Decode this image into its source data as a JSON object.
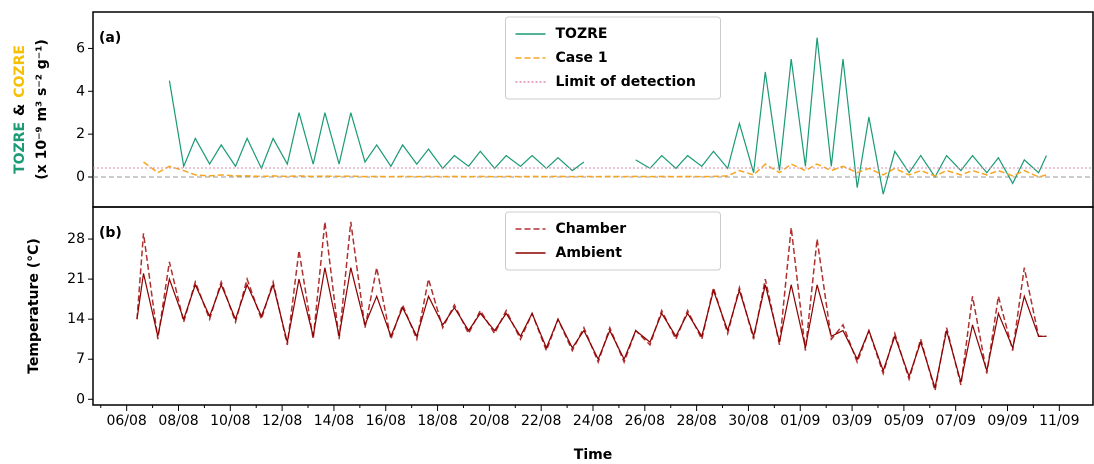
{
  "chart_data": [
    {
      "type": "line",
      "panel_label": "(a)",
      "ylabel": [
        "TOZRE",
        "&",
        "COZRE"
      ],
      "ylabel_colors": [
        "#1a9a75",
        "#000000",
        "#f5c000"
      ],
      "ylabel_units": "(x 10⁻⁹ m³ s⁻² g⁻¹)",
      "xlim": [
        4.7,
        43.3
      ],
      "ylim": [
        -1.4,
        7.7
      ],
      "yticks": [
        0,
        2,
        4,
        6
      ],
      "zero_line": true,
      "legend": "upper center",
      "x": [
        6.4,
        6.65,
        7.2,
        7.65,
        8.2,
        8.65,
        9.2,
        9.65,
        10.2,
        10.65,
        11.2,
        11.65,
        12.2,
        12.65,
        13.2,
        13.65,
        14.2,
        14.65,
        15.2,
        15.65,
        16.2,
        16.65,
        17.2,
        17.65,
        18.2,
        18.65,
        19.2,
        19.65,
        20.2,
        20.65,
        21.2,
        21.65,
        22.2,
        22.65,
        23.2,
        23.65,
        24.2,
        24.65,
        25.2,
        25.65,
        26.2,
        26.65,
        27.2,
        27.65,
        28.2,
        28.65,
        29.2,
        29.65,
        30.2,
        30.65,
        31.2,
        31.65,
        32.2,
        32.65,
        33.2,
        33.65,
        34.2,
        34.65,
        35.2,
        35.65,
        36.2,
        36.65,
        37.2,
        37.65,
        38.2,
        38.65,
        39.2,
        39.65,
        40.2,
        40.65,
        41.2,
        41.5
      ],
      "series": [
        {
          "name": "TOZRE",
          "color": "#1a9a75",
          "style": "solid",
          "values": [
            null,
            null,
            null,
            4.5,
            0.5,
            1.8,
            0.6,
            1.5,
            0.5,
            1.8,
            0.4,
            1.8,
            0.6,
            3.0,
            0.6,
            3.0,
            0.6,
            3.0,
            0.7,
            1.5,
            0.5,
            1.5,
            0.6,
            1.3,
            0.4,
            1.0,
            0.5,
            1.2,
            0.4,
            1.0,
            0.5,
            1.0,
            0.4,
            0.9,
            0.3,
            0.7,
            null,
            0.6,
            null,
            0.8,
            0.4,
            1.0,
            0.4,
            1.0,
            0.5,
            1.2,
            0.4,
            2.5,
            0.2,
            4.9,
            0.3,
            5.5,
            0.5,
            6.5,
            0.5,
            5.5,
            -0.5,
            2.8,
            -0.8,
            1.2,
            0.2,
            1.0,
            0.0,
            1.0,
            0.3,
            1.0,
            0.2,
            0.9,
            -0.3,
            0.8,
            0.2,
            1.0
          ]
        },
        {
          "name": "Case 1",
          "color": "#f5a623",
          "style": "dashed",
          "values": [
            null,
            0.7,
            0.2,
            0.5,
            0.3,
            0.1,
            0.05,
            0.1,
            0.05,
            0.05,
            0.03,
            0.05,
            0.03,
            0.05,
            0.03,
            0.04,
            0.03,
            0.04,
            0.02,
            0.03,
            0.02,
            0.03,
            0.02,
            0.03,
            0.02,
            0.03,
            0.02,
            0.03,
            0.02,
            0.03,
            0.02,
            0.03,
            0.02,
            0.03,
            0.02,
            0.03,
            0.02,
            0.03,
            0.02,
            0.03,
            0.02,
            0.03,
            0.02,
            0.03,
            0.02,
            0.03,
            0.05,
            0.3,
            0.1,
            0.6,
            0.2,
            0.6,
            0.3,
            0.6,
            0.3,
            0.5,
            0.2,
            0.4,
            0.1,
            0.4,
            0.1,
            0.3,
            0.05,
            0.3,
            0.1,
            0.3,
            0.1,
            0.3,
            0.05,
            0.3,
            0.0,
            0.1
          ]
        },
        {
          "name": "Limit of detection",
          "color": "#d98cb0",
          "style": "dotted",
          "value": 0.42
        }
      ]
    },
    {
      "type": "line",
      "panel_label": "(b)",
      "ylabel": "Temperature (°C)",
      "xlabel": "Time",
      "xlim": [
        4.7,
        43.3
      ],
      "ylim": [
        -1,
        33.6
      ],
      "yticks": [
        0,
        7,
        14,
        21,
        28
      ],
      "legend": "upper center",
      "xticks": [
        {
          "value": 6,
          "label": "06/08"
        },
        {
          "value": 8,
          "label": "08/08"
        },
        {
          "value": 10,
          "label": "10/08"
        },
        {
          "value": 12,
          "label": "12/08"
        },
        {
          "value": 14,
          "label": "14/08"
        },
        {
          "value": 16,
          "label": "16/08"
        },
        {
          "value": 18,
          "label": "18/08"
        },
        {
          "value": 20,
          "label": "20/08"
        },
        {
          "value": 22,
          "label": "22/08"
        },
        {
          "value": 24,
          "label": "24/08"
        },
        {
          "value": 26,
          "label": "26/08"
        },
        {
          "value": 28,
          "label": "28/08"
        },
        {
          "value": 30,
          "label": "30/08"
        },
        {
          "value": 32,
          "label": "01/09"
        },
        {
          "value": 34,
          "label": "03/09"
        },
        {
          "value": 36,
          "label": "05/09"
        },
        {
          "value": 38,
          "label": "07/09"
        },
        {
          "value": 40,
          "label": "09/09"
        },
        {
          "value": 42,
          "label": "11/09"
        }
      ],
      "xminorticks": [
        5,
        7,
        9,
        11,
        13,
        15,
        17,
        19,
        21,
        23,
        25,
        27,
        29,
        31,
        33,
        35,
        37,
        39,
        41
      ],
      "x": [
        6.4,
        6.65,
        7.2,
        7.65,
        8.2,
        8.65,
        9.2,
        9.65,
        10.2,
        10.65,
        11.2,
        11.65,
        12.2,
        12.65,
        13.2,
        13.65,
        14.2,
        14.65,
        15.2,
        15.65,
        16.2,
        16.65,
        17.2,
        17.65,
        18.2,
        18.65,
        19.2,
        19.65,
        20.2,
        20.65,
        21.2,
        21.65,
        22.2,
        22.65,
        23.2,
        23.65,
        24.2,
        24.65,
        25.2,
        25.65,
        26.2,
        26.65,
        27.2,
        27.65,
        28.2,
        28.65,
        29.2,
        29.65,
        30.2,
        30.65,
        31.2,
        31.65,
        32.2,
        32.65,
        33.2,
        33.65,
        34.2,
        34.65,
        35.2,
        35.65,
        36.2,
        36.65,
        37.2,
        37.65,
        38.2,
        38.65,
        39.2,
        39.65,
        40.2,
        40.65,
        41.2,
        41.5
      ],
      "series": [
        {
          "name": "Chamber",
          "color": "#b03030",
          "style": "dashed",
          "values": [
            14,
            29,
            10.5,
            24,
            13.5,
            20.5,
            14,
            20.5,
            13.5,
            21,
            14,
            20.5,
            9.5,
            26,
            10.5,
            31,
            10.5,
            31,
            12.5,
            23,
            10.5,
            16.5,
            10.5,
            21,
            12.5,
            16.5,
            11.5,
            15.5,
            11.5,
            15.5,
            10.5,
            15,
            8.5,
            14,
            8.5,
            12.5,
            6.5,
            12.5,
            6.5,
            12,
            9.5,
            15.5,
            10.5,
            15.5,
            10.5,
            19.5,
            11.5,
            19.5,
            10.5,
            21,
            9.5,
            30,
            8.5,
            28,
            10.5,
            13,
            6.5,
            12,
            4.5,
            11.5,
            3.5,
            10.5,
            1.5,
            12.5,
            2.5,
            18,
            4.5,
            18,
            8.5,
            23,
            11,
            11
          ]
        },
        {
          "name": "Ambient",
          "color": "#8b0000",
          "style": "solid",
          "values": [
            14,
            22,
            11,
            21,
            14,
            20,
            14.5,
            20,
            14,
            20,
            14.5,
            20,
            10,
            21,
            11,
            23,
            11,
            23,
            13,
            18,
            11,
            16,
            11,
            18,
            13,
            16,
            12,
            15,
            12,
            15,
            11,
            15,
            9,
            14,
            9,
            12,
            7,
            12,
            7,
            12,
            10,
            15,
            11,
            15,
            11,
            19,
            12,
            19,
            11,
            20,
            10,
            20,
            9,
            20,
            11,
            12,
            7,
            12,
            5,
            11,
            4,
            10,
            2,
            12,
            3,
            13,
            5,
            15,
            9,
            18,
            11,
            11
          ]
        }
      ]
    }
  ]
}
